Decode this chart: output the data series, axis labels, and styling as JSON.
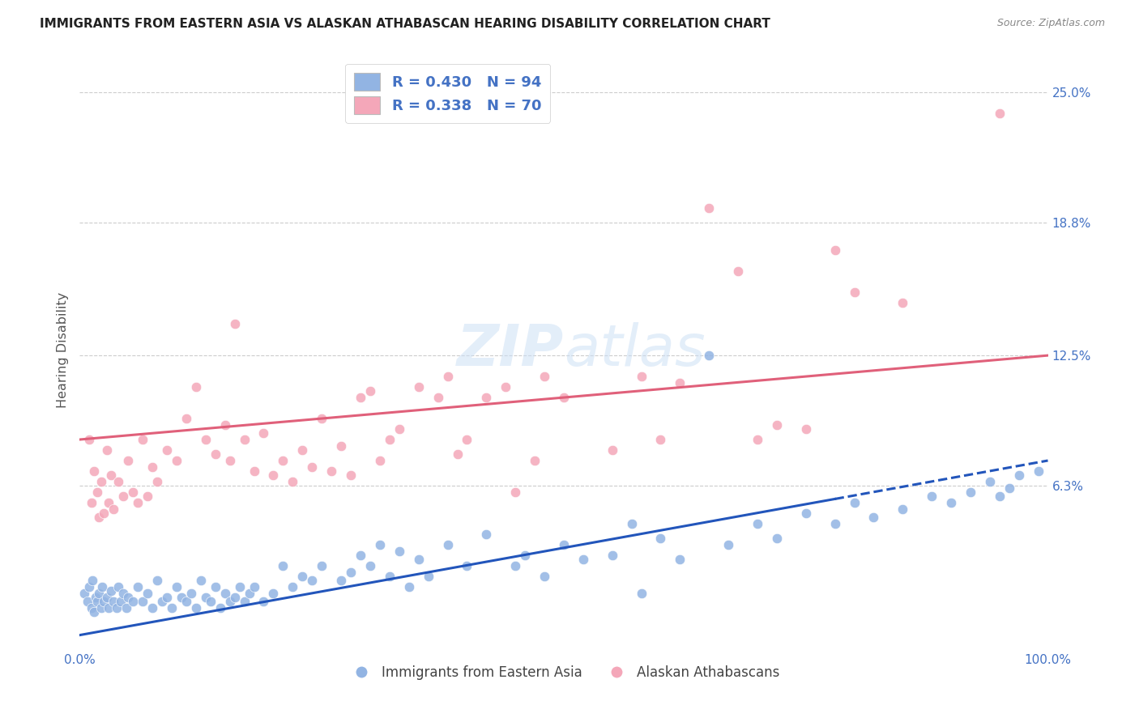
{
  "title": "IMMIGRANTS FROM EASTERN ASIA VS ALASKAN ATHABASCAN HEARING DISABILITY CORRELATION CHART",
  "source": "Source: ZipAtlas.com",
  "ylabel": "Hearing Disability",
  "xlim": [
    0,
    100
  ],
  "ylim": [
    -1.5,
    27.0
  ],
  "ytick_vals": [
    0.0,
    6.3,
    12.5,
    18.8,
    25.0
  ],
  "ytick_labels": [
    "",
    "6.3%",
    "12.5%",
    "18.8%",
    "25.0%"
  ],
  "xticks": [
    0,
    25,
    50,
    75,
    100
  ],
  "xtick_labels": [
    "0.0%",
    "",
    "",
    "",
    "100.0%"
  ],
  "legend_r_blue": "R = 0.430",
  "legend_n_blue": "N = 94",
  "legend_r_pink": "R = 0.338",
  "legend_n_pink": "N = 70",
  "blue_color": "#92b4e3",
  "pink_color": "#f4a7b9",
  "line_blue_color": "#2255bb",
  "line_pink_color": "#e0607a",
  "background_color": "#ffffff",
  "grid_color": "#cccccc",
  "blue_scatter": [
    [
      0.5,
      1.2
    ],
    [
      0.8,
      0.8
    ],
    [
      1.0,
      1.5
    ],
    [
      1.2,
      0.5
    ],
    [
      1.3,
      1.8
    ],
    [
      1.5,
      0.3
    ],
    [
      1.6,
      1.0
    ],
    [
      1.8,
      0.8
    ],
    [
      2.0,
      1.2
    ],
    [
      2.2,
      0.5
    ],
    [
      2.3,
      1.5
    ],
    [
      2.5,
      0.8
    ],
    [
      2.8,
      1.0
    ],
    [
      3.0,
      0.5
    ],
    [
      3.2,
      1.3
    ],
    [
      3.5,
      0.8
    ],
    [
      3.8,
      0.5
    ],
    [
      4.0,
      1.5
    ],
    [
      4.2,
      0.8
    ],
    [
      4.5,
      1.2
    ],
    [
      4.8,
      0.5
    ],
    [
      5.0,
      1.0
    ],
    [
      5.5,
      0.8
    ],
    [
      6.0,
      1.5
    ],
    [
      6.5,
      0.8
    ],
    [
      7.0,
      1.2
    ],
    [
      7.5,
      0.5
    ],
    [
      8.0,
      1.8
    ],
    [
      8.5,
      0.8
    ],
    [
      9.0,
      1.0
    ],
    [
      9.5,
      0.5
    ],
    [
      10.0,
      1.5
    ],
    [
      10.5,
      1.0
    ],
    [
      11.0,
      0.8
    ],
    [
      11.5,
      1.2
    ],
    [
      12.0,
      0.5
    ],
    [
      12.5,
      1.8
    ],
    [
      13.0,
      1.0
    ],
    [
      13.5,
      0.8
    ],
    [
      14.0,
      1.5
    ],
    [
      14.5,
      0.5
    ],
    [
      15.0,
      1.2
    ],
    [
      15.5,
      0.8
    ],
    [
      16.0,
      1.0
    ],
    [
      16.5,
      1.5
    ],
    [
      17.0,
      0.8
    ],
    [
      17.5,
      1.2
    ],
    [
      18.0,
      1.5
    ],
    [
      19.0,
      0.8
    ],
    [
      20.0,
      1.2
    ],
    [
      21.0,
      2.5
    ],
    [
      22.0,
      1.5
    ],
    [
      23.0,
      2.0
    ],
    [
      24.0,
      1.8
    ],
    [
      25.0,
      2.5
    ],
    [
      27.0,
      1.8
    ],
    [
      28.0,
      2.2
    ],
    [
      29.0,
      3.0
    ],
    [
      30.0,
      2.5
    ],
    [
      31.0,
      3.5
    ],
    [
      32.0,
      2.0
    ],
    [
      33.0,
      3.2
    ],
    [
      34.0,
      1.5
    ],
    [
      35.0,
      2.8
    ],
    [
      36.0,
      2.0
    ],
    [
      38.0,
      3.5
    ],
    [
      40.0,
      2.5
    ],
    [
      42.0,
      4.0
    ],
    [
      45.0,
      2.5
    ],
    [
      46.0,
      3.0
    ],
    [
      48.0,
      2.0
    ],
    [
      50.0,
      3.5
    ],
    [
      52.0,
      2.8
    ],
    [
      55.0,
      3.0
    ],
    [
      57.0,
      4.5
    ],
    [
      58.0,
      1.2
    ],
    [
      60.0,
      3.8
    ],
    [
      62.0,
      2.8
    ],
    [
      65.0,
      12.5
    ],
    [
      67.0,
      3.5
    ],
    [
      70.0,
      4.5
    ],
    [
      72.0,
      3.8
    ],
    [
      75.0,
      5.0
    ],
    [
      78.0,
      4.5
    ],
    [
      80.0,
      5.5
    ],
    [
      82.0,
      4.8
    ],
    [
      85.0,
      5.2
    ],
    [
      88.0,
      5.8
    ],
    [
      90.0,
      5.5
    ],
    [
      92.0,
      6.0
    ],
    [
      94.0,
      6.5
    ],
    [
      95.0,
      5.8
    ],
    [
      96.0,
      6.2
    ],
    [
      97.0,
      6.8
    ],
    [
      99.0,
      7.0
    ]
  ],
  "pink_scatter": [
    [
      1.0,
      8.5
    ],
    [
      1.2,
      5.5
    ],
    [
      1.5,
      7.0
    ],
    [
      1.8,
      6.0
    ],
    [
      2.0,
      4.8
    ],
    [
      2.2,
      6.5
    ],
    [
      2.5,
      5.0
    ],
    [
      2.8,
      8.0
    ],
    [
      3.0,
      5.5
    ],
    [
      3.2,
      6.8
    ],
    [
      3.5,
      5.2
    ],
    [
      4.0,
      6.5
    ],
    [
      4.5,
      5.8
    ],
    [
      5.0,
      7.5
    ],
    [
      5.5,
      6.0
    ],
    [
      6.0,
      5.5
    ],
    [
      6.5,
      8.5
    ],
    [
      7.0,
      5.8
    ],
    [
      7.5,
      7.2
    ],
    [
      8.0,
      6.5
    ],
    [
      9.0,
      8.0
    ],
    [
      10.0,
      7.5
    ],
    [
      11.0,
      9.5
    ],
    [
      12.0,
      11.0
    ],
    [
      13.0,
      8.5
    ],
    [
      14.0,
      7.8
    ],
    [
      15.0,
      9.2
    ],
    [
      15.5,
      7.5
    ],
    [
      16.0,
      14.0
    ],
    [
      17.0,
      8.5
    ],
    [
      18.0,
      7.0
    ],
    [
      19.0,
      8.8
    ],
    [
      20.0,
      6.8
    ],
    [
      21.0,
      7.5
    ],
    [
      22.0,
      6.5
    ],
    [
      23.0,
      8.0
    ],
    [
      24.0,
      7.2
    ],
    [
      25.0,
      9.5
    ],
    [
      26.0,
      7.0
    ],
    [
      27.0,
      8.2
    ],
    [
      28.0,
      6.8
    ],
    [
      29.0,
      10.5
    ],
    [
      30.0,
      10.8
    ],
    [
      31.0,
      7.5
    ],
    [
      32.0,
      8.5
    ],
    [
      33.0,
      9.0
    ],
    [
      35.0,
      11.0
    ],
    [
      37.0,
      10.5
    ],
    [
      38.0,
      11.5
    ],
    [
      39.0,
      7.8
    ],
    [
      40.0,
      8.5
    ],
    [
      42.0,
      10.5
    ],
    [
      44.0,
      11.0
    ],
    [
      45.0,
      6.0
    ],
    [
      47.0,
      7.5
    ],
    [
      48.0,
      11.5
    ],
    [
      50.0,
      10.5
    ],
    [
      55.0,
      8.0
    ],
    [
      58.0,
      11.5
    ],
    [
      60.0,
      8.5
    ],
    [
      62.0,
      11.2
    ],
    [
      65.0,
      19.5
    ],
    [
      68.0,
      16.5
    ],
    [
      70.0,
      8.5
    ],
    [
      72.0,
      9.2
    ],
    [
      75.0,
      9.0
    ],
    [
      78.0,
      17.5
    ],
    [
      80.0,
      15.5
    ],
    [
      85.0,
      15.0
    ],
    [
      95.0,
      24.0
    ]
  ],
  "blue_trendline_x0": 0,
  "blue_trendline_y0": -0.8,
  "blue_trendline_x1": 100,
  "blue_trendline_y1": 7.5,
  "blue_dash_start": 78,
  "pink_trendline_x0": 0,
  "pink_trendline_y0": 8.5,
  "pink_trendline_x1": 100,
  "pink_trendline_y1": 12.5
}
